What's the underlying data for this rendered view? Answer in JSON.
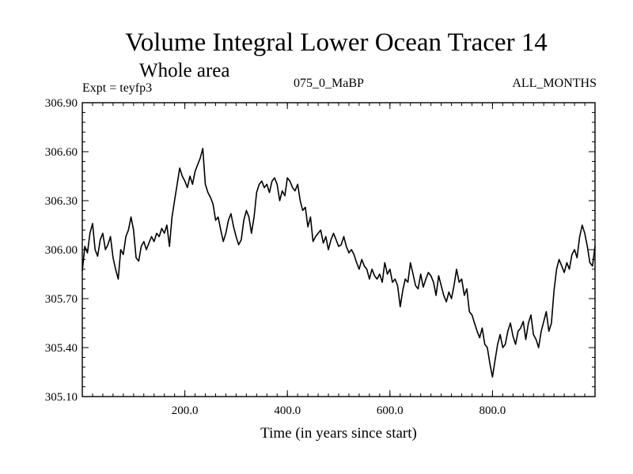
{
  "chart_data": {
    "type": "line",
    "title": "Volume Integral Lower Ocean Tracer 14",
    "subtitle": "Whole area",
    "experiment_label": "Expt = teyfp3",
    "period_label": "075_0_MaBP",
    "months_label": "ALL_MONTHS",
    "xlabel": "Time (in years since start)",
    "ylabel": "",
    "xlim": [
      0,
      1000
    ],
    "ylim": [
      305.1,
      306.9
    ],
    "x_ticks": [
      200,
      400,
      600,
      800
    ],
    "x_tick_labels": [
      "200.0",
      "400.0",
      "600.0",
      "800.0"
    ],
    "y_ticks": [
      305.1,
      305.4,
      305.7,
      306.0,
      306.3,
      306.6,
      306.9
    ],
    "y_tick_labels": [
      "305.10",
      "305.40",
      "305.70",
      "306.00",
      "306.30",
      "306.60",
      "306.90"
    ],
    "grid": false,
    "series": [
      {
        "name": "Volume Integral Lower Ocean Tracer 14",
        "x": [
          0,
          5,
          10,
          15,
          20,
          25,
          30,
          35,
          40,
          45,
          50,
          55,
          60,
          65,
          70,
          75,
          80,
          85,
          90,
          95,
          100,
          105,
          110,
          115,
          120,
          125,
          130,
          135,
          140,
          145,
          150,
          155,
          160,
          165,
          170,
          175,
          180,
          185,
          190,
          195,
          200,
          205,
          210,
          215,
          220,
          225,
          230,
          235,
          240,
          245,
          250,
          255,
          260,
          265,
          270,
          275,
          280,
          285,
          290,
          295,
          300,
          305,
          310,
          315,
          320,
          325,
          330,
          335,
          340,
          345,
          350,
          355,
          360,
          365,
          370,
          375,
          380,
          385,
          390,
          395,
          400,
          405,
          410,
          415,
          420,
          425,
          430,
          435,
          440,
          445,
          450,
          455,
          460,
          465,
          470,
          475,
          480,
          485,
          490,
          495,
          500,
          505,
          510,
          515,
          520,
          525,
          530,
          535,
          540,
          545,
          550,
          555,
          560,
          565,
          570,
          575,
          580,
          585,
          590,
          595,
          600,
          605,
          610,
          615,
          620,
          625,
          630,
          635,
          640,
          645,
          650,
          655,
          660,
          665,
          670,
          675,
          680,
          685,
          690,
          695,
          700,
          705,
          710,
          715,
          720,
          725,
          730,
          735,
          740,
          745,
          750,
          755,
          760,
          765,
          770,
          775,
          780,
          785,
          790,
          795,
          800,
          805,
          810,
          815,
          820,
          825,
          830,
          835,
          840,
          845,
          850,
          855,
          860,
          865,
          870,
          875,
          880,
          885,
          890,
          895,
          900,
          905,
          910,
          915,
          920,
          925,
          930,
          935,
          940,
          945,
          950,
          955,
          960,
          965,
          970,
          975,
          980,
          985,
          990,
          995,
          1000
        ],
        "y": [
          305.87,
          306.02,
          305.98,
          306.1,
          306.16,
          306.0,
          305.96,
          306.06,
          306.1,
          306.0,
          306.03,
          306.08,
          305.95,
          305.88,
          305.82,
          306.0,
          305.97,
          306.08,
          306.12,
          306.2,
          306.12,
          305.95,
          305.93,
          306.02,
          306.05,
          306.0,
          306.04,
          306.08,
          306.05,
          306.1,
          306.08,
          306.13,
          306.1,
          306.15,
          306.02,
          306.2,
          306.3,
          306.4,
          306.5,
          306.45,
          306.42,
          306.38,
          306.45,
          306.4,
          306.48,
          306.52,
          306.56,
          306.62,
          306.4,
          306.35,
          306.32,
          306.28,
          306.18,
          306.2,
          306.12,
          306.05,
          306.1,
          306.18,
          306.22,
          306.14,
          306.08,
          306.03,
          306.06,
          306.18,
          306.24,
          306.2,
          306.1,
          306.2,
          306.35,
          306.4,
          306.42,
          306.38,
          306.4,
          306.35,
          306.42,
          306.44,
          306.4,
          306.3,
          306.36,
          306.33,
          306.44,
          306.42,
          306.38,
          306.36,
          306.4,
          306.3,
          306.24,
          306.26,
          306.14,
          306.2,
          306.05,
          306.08,
          306.1,
          306.12,
          306.04,
          306.08,
          306.0,
          306.06,
          306.1,
          306.06,
          306.02,
          306.03,
          306.08,
          306.02,
          305.98,
          306.0,
          305.97,
          305.92,
          305.88,
          305.94,
          305.9,
          305.88,
          305.82,
          305.88,
          305.84,
          305.82,
          305.85,
          305.8,
          305.92,
          305.85,
          305.88,
          305.8,
          305.82,
          305.78,
          305.65,
          305.75,
          305.82,
          305.8,
          305.92,
          305.85,
          305.78,
          305.76,
          305.85,
          305.77,
          305.82,
          305.86,
          305.84,
          305.8,
          305.72,
          305.84,
          305.78,
          305.72,
          305.68,
          305.74,
          305.7,
          305.78,
          305.88,
          305.8,
          305.82,
          305.72,
          305.76,
          305.62,
          305.6,
          305.55,
          305.5,
          305.46,
          305.52,
          305.42,
          305.4,
          305.3,
          305.22,
          305.32,
          305.42,
          305.48,
          305.4,
          305.42,
          305.5,
          305.55,
          305.47,
          305.42,
          305.5,
          305.52,
          305.56,
          305.45,
          305.55,
          305.6,
          305.48,
          305.45,
          305.4,
          305.5,
          305.56,
          305.62,
          305.5,
          305.55,
          305.75,
          305.88,
          305.94,
          305.9,
          305.86,
          305.92,
          305.88,
          305.97,
          306.0,
          305.95,
          306.08,
          306.15,
          306.1,
          306.02,
          305.92,
          305.9,
          306.02
        ]
      }
    ],
    "line_color": "#000000"
  }
}
